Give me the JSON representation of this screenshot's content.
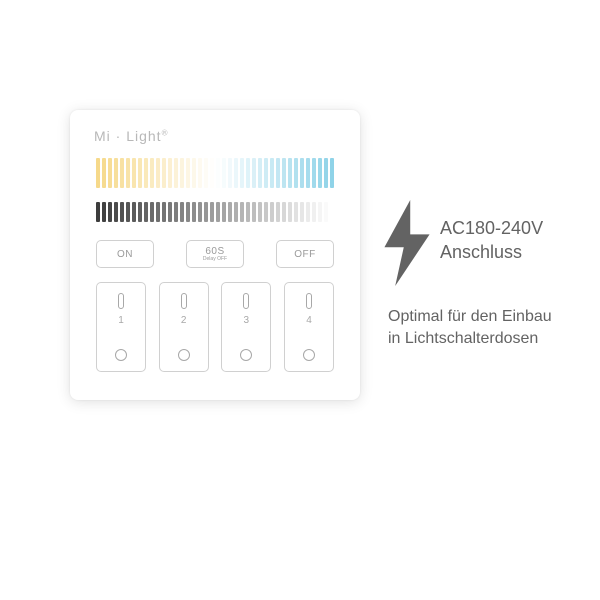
{
  "brand": "Mi · Light",
  "brand_registered": "®",
  "cct_strip": {
    "count": 40,
    "start_color": "#f6d98a",
    "mid_color": "#ffffff",
    "end_color": "#8fd3e8"
  },
  "dim_strip": {
    "count": 40,
    "start_color": "#3d3d3d",
    "end_color": "#ffffff"
  },
  "buttons": {
    "on": "ON",
    "delay_main": "60S",
    "delay_sub": "Delay OFF",
    "off": "OFF"
  },
  "zones": [
    {
      "num": "1"
    },
    {
      "num": "2"
    },
    {
      "num": "3"
    },
    {
      "num": "4"
    }
  ],
  "side": {
    "voltage_line1": "AC180-240V",
    "voltage_line2": "Anschluss",
    "desc_line1": "Optimal für den Einbau",
    "desc_line2": "in Lichtschalterdosen"
  },
  "colors": {
    "text_side": "#636363",
    "panel_border": "#d0d0d0",
    "icon_gray": "#a8a8a8"
  }
}
